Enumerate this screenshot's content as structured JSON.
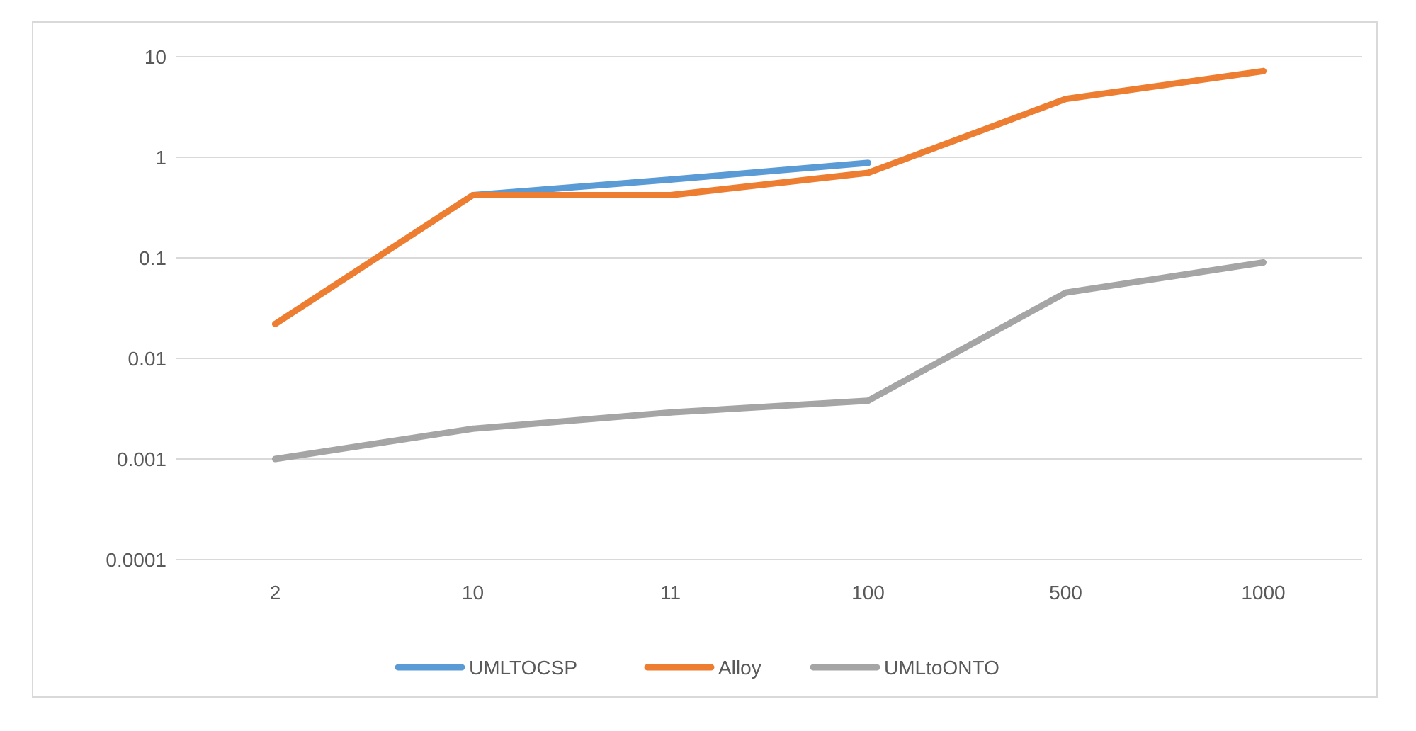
{
  "chart_data": {
    "type": "line",
    "title": "",
    "xlabel": "",
    "ylabel": "",
    "y_scale": "log",
    "ylim": [
      0.0001,
      10
    ],
    "y_ticks": [
      "10",
      "1",
      "0.1",
      "0.01",
      "0.001",
      "0.0001"
    ],
    "grid": true,
    "legend_position": "bottom",
    "categories": [
      "2",
      "10",
      "11",
      "100",
      "500",
      "1000"
    ],
    "series": [
      {
        "name": "UMLTOCSP",
        "color": "#5b9bd5",
        "values": [
          null,
          0.42,
          0.6,
          0.88,
          null,
          null
        ]
      },
      {
        "name": "Alloy",
        "color": "#ed7d31",
        "values": [
          0.022,
          0.42,
          0.42,
          0.7,
          3.8,
          7.2
        ]
      },
      {
        "name": "UMLtoONTO",
        "color": "#a5a5a5",
        "values": [
          0.001,
          0.002,
          0.0029,
          0.0038,
          0.045,
          0.09
        ]
      }
    ]
  }
}
